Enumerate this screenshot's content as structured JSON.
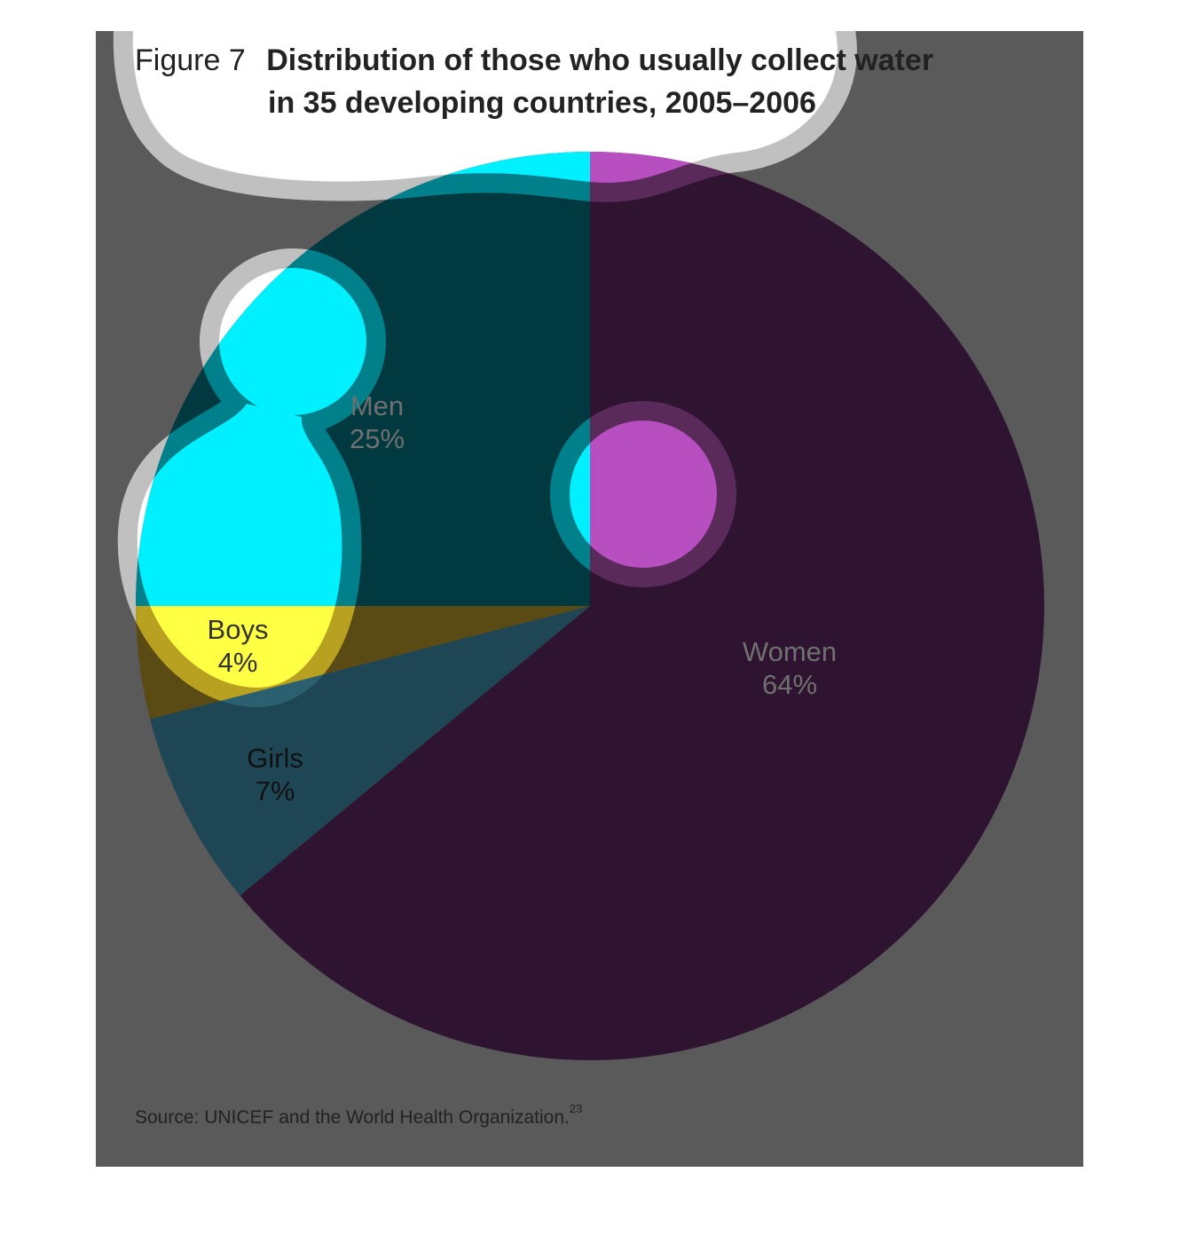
{
  "chart_data": {
    "type": "pie",
    "figure_label": "Figure 7",
    "title": [
      "Distribution of those who usually collect water",
      "in 35 developing countries, 2005–2006"
    ],
    "categories": [
      "Women",
      "Girls",
      "Boys",
      "Men"
    ],
    "values": [
      64,
      7,
      4,
      25
    ],
    "value_labels": [
      "64%",
      "7%",
      "4%",
      "25%"
    ],
    "colors": [
      "#2e1430",
      "#1f4654",
      "#5a4a14",
      "#003a40"
    ],
    "source": "Source: UNICEF and the World Health Organization.",
    "source_ref": "23"
  }
}
